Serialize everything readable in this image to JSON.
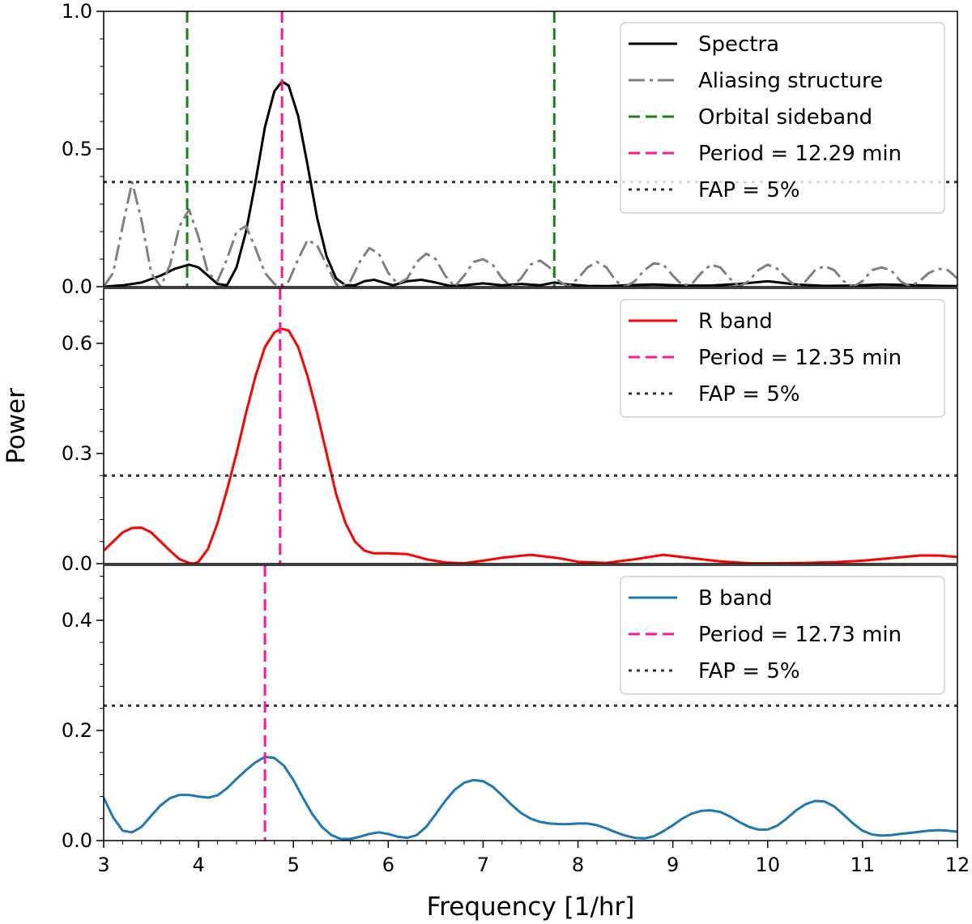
{
  "chart_data": {
    "type": "line",
    "xlabel": "Frequency [1/hr]",
    "ylabel": "Power",
    "xlim": [
      3,
      12
    ],
    "x_ticks": [
      "3",
      "4",
      "5",
      "6",
      "7",
      "8",
      "9",
      "10",
      "11",
      "12"
    ],
    "colors": {
      "spectra": "#000000",
      "alias": "#808080",
      "orbital": "#1a7f1a",
      "period": "#ff1493",
      "fap": "#333333",
      "r_band": "#ff0000",
      "b_band": "#1f77b4"
    },
    "panels": [
      {
        "id": "spectra",
        "ylim": [
          0,
          1.0
        ],
        "y_ticks": [
          "0.0",
          "0.5",
          "1.0"
        ],
        "fap": 0.38,
        "period_freq": 4.88,
        "orbital_sidebands": [
          3.88,
          7.75
        ],
        "legend": [
          {
            "label": "Spectra",
            "style": "solid",
            "color": "#000000"
          },
          {
            "label": "Aliasing structure",
            "style": "dashdot",
            "color": "#808080"
          },
          {
            "label": "Orbital sideband",
            "style": "dashed",
            "color": "#1a7f1a"
          },
          {
            "label": "Period = 12.29 min",
            "style": "dashed",
            "color": "#ff1493"
          },
          {
            "label": "FAP = 5%",
            "style": "dotted",
            "color": "#333333"
          }
        ],
        "series": [
          {
            "name": "Spectra",
            "color": "#000000",
            "dash": "",
            "x": [
              3.0,
              3.2,
              3.4,
              3.6,
              3.75,
              3.9,
              4.0,
              4.1,
              4.2,
              4.3,
              4.4,
              4.5,
              4.6,
              4.7,
              4.8,
              4.88,
              4.95,
              5.05,
              5.15,
              5.25,
              5.35,
              5.45,
              5.55,
              5.65,
              5.75,
              5.85,
              5.95,
              6.05,
              6.2,
              6.35,
              6.5,
              6.65,
              6.8,
              7.0,
              7.2,
              7.4,
              7.6,
              7.75,
              7.9,
              8.1,
              8.3,
              8.5,
              8.8,
              9.1,
              9.4,
              9.7,
              10.0,
              10.3,
              10.6,
              10.9,
              11.2,
              11.5,
              11.8,
              12.0
            ],
            "y": [
              0.0,
              0.005,
              0.015,
              0.04,
              0.065,
              0.08,
              0.07,
              0.04,
              0.01,
              0.005,
              0.07,
              0.2,
              0.38,
              0.58,
              0.71,
              0.745,
              0.73,
              0.62,
              0.44,
              0.25,
              0.11,
              0.03,
              0.005,
              0.005,
              0.02,
              0.025,
              0.015,
              0.005,
              0.02,
              0.025,
              0.015,
              0.003,
              0.005,
              0.012,
              0.005,
              0.01,
              0.005,
              0.015,
              0.008,
              0.003,
              0.002,
              0.005,
              0.008,
              0.004,
              0.004,
              0.01,
              0.02,
              0.008,
              0.003,
              0.004,
              0.008,
              0.006,
              0.003,
              0.002
            ]
          },
          {
            "name": "Aliasing structure",
            "color": "#808080",
            "dash": "20,6,4,6",
            "x": [
              3.0,
              3.1,
              3.2,
              3.3,
              3.4,
              3.5,
              3.6,
              3.7,
              3.8,
              3.9,
              4.0,
              4.1,
              4.2,
              4.3,
              4.4,
              4.5,
              4.6,
              4.7,
              4.8,
              4.88,
              4.95,
              5.05,
              5.15,
              5.25,
              5.35,
              5.45,
              5.5,
              5.6,
              5.7,
              5.8,
              5.9,
              6.0,
              6.1,
              6.2,
              6.3,
              6.4,
              6.5,
              6.6,
              6.7,
              6.8,
              6.9,
              7.0,
              7.1,
              7.2,
              7.3,
              7.4,
              7.5,
              7.6,
              7.7,
              7.8,
              7.9,
              8.0,
              8.1,
              8.2,
              8.3,
              8.4,
              8.5,
              8.6,
              8.7,
              8.8,
              8.9,
              9.0,
              9.1,
              9.2,
              9.3,
              9.4,
              9.5,
              9.6,
              9.7,
              9.8,
              9.9,
              10.0,
              10.1,
              10.2,
              10.3,
              10.4,
              10.5,
              10.6,
              10.7,
              10.8,
              10.9,
              11.0,
              11.1,
              11.2,
              11.3,
              11.4,
              11.5,
              11.6,
              11.7,
              11.8,
              11.9,
              12.0
            ],
            "y": [
              0.0,
              0.05,
              0.22,
              0.38,
              0.24,
              0.05,
              0.0,
              0.08,
              0.22,
              0.28,
              0.18,
              0.05,
              0.02,
              0.1,
              0.2,
              0.22,
              0.14,
              0.05,
              0.01,
              0.0,
              0.02,
              0.1,
              0.17,
              0.15,
              0.08,
              0.01,
              0.0,
              0.02,
              0.09,
              0.14,
              0.12,
              0.05,
              0.01,
              0.03,
              0.09,
              0.12,
              0.1,
              0.04,
              0.0,
              0.04,
              0.09,
              0.1,
              0.08,
              0.03,
              0.0,
              0.03,
              0.08,
              0.095,
              0.07,
              0.02,
              0.0,
              0.03,
              0.07,
              0.09,
              0.07,
              0.02,
              0.0,
              0.02,
              0.06,
              0.085,
              0.08,
              0.04,
              0.005,
              0.01,
              0.05,
              0.08,
              0.07,
              0.03,
              0.0,
              0.02,
              0.06,
              0.08,
              0.065,
              0.03,
              0.0,
              0.02,
              0.06,
              0.075,
              0.06,
              0.02,
              0.0,
              0.02,
              0.06,
              0.07,
              0.06,
              0.02,
              0.0,
              0.02,
              0.05,
              0.065,
              0.06,
              0.03
            ]
          }
        ]
      },
      {
        "id": "r_band",
        "ylim": [
          0,
          0.75
        ],
        "y_ticks": [
          "0.0",
          "0.3",
          "0.6"
        ],
        "fap": 0.24,
        "period_freq": 4.86,
        "legend": [
          {
            "label": "R band",
            "style": "solid",
            "color": "#ff0000"
          },
          {
            "label": "Period = 12.35 min",
            "style": "dashed",
            "color": "#ff1493"
          },
          {
            "label": "FAP = 5%",
            "style": "dotted",
            "color": "#333333"
          }
        ],
        "series": [
          {
            "name": "R band",
            "color": "#ff0000",
            "dash": "",
            "x": [
              3.0,
              3.1,
              3.2,
              3.3,
              3.4,
              3.5,
              3.6,
              3.7,
              3.8,
              3.9,
              3.95,
              4.0,
              4.1,
              4.2,
              4.3,
              4.4,
              4.5,
              4.6,
              4.7,
              4.8,
              4.87,
              4.95,
              5.05,
              5.15,
              5.25,
              5.35,
              5.45,
              5.55,
              5.65,
              5.75,
              5.85,
              6.0,
              6.2,
              6.4,
              6.6,
              6.8,
              7.0,
              7.2,
              7.5,
              7.8,
              8.0,
              8.3,
              8.6,
              8.9,
              9.2,
              9.5,
              9.8,
              10.1,
              10.4,
              10.7,
              11.0,
              11.3,
              11.6,
              11.8,
              12.0
            ],
            "y": [
              0.035,
              0.06,
              0.085,
              0.097,
              0.098,
              0.085,
              0.06,
              0.035,
              0.012,
              0.002,
              0.0,
              0.005,
              0.04,
              0.11,
              0.2,
              0.3,
              0.41,
              0.51,
              0.59,
              0.63,
              0.64,
              0.635,
              0.59,
              0.51,
              0.41,
              0.3,
              0.19,
              0.11,
              0.06,
              0.035,
              0.028,
              0.028,
              0.026,
              0.012,
              0.003,
              0.001,
              0.008,
              0.016,
              0.024,
              0.015,
              0.005,
              0.002,
              0.012,
              0.024,
              0.015,
              0.006,
              0.001,
              0.001,
              0.002,
              0.004,
              0.008,
              0.015,
              0.022,
              0.022,
              0.018
            ]
          }
        ]
      },
      {
        "id": "b_band",
        "ylim": [
          0,
          0.5
        ],
        "y_ticks": [
          "0.0",
          "0.2",
          "0.4"
        ],
        "fap": 0.245,
        "period_freq": 4.7,
        "legend": [
          {
            "label": "B band",
            "style": "solid",
            "color": "#1f77b4"
          },
          {
            "label": "Period = 12.73 min",
            "style": "dashed",
            "color": "#ff1493"
          },
          {
            "label": "FAP = 5%",
            "style": "dotted",
            "color": "#333333"
          }
        ],
        "series": [
          {
            "name": "B band",
            "color": "#1f77b4",
            "dash": "",
            "x": [
              3.0,
              3.1,
              3.2,
              3.3,
              3.4,
              3.5,
              3.6,
              3.7,
              3.8,
              3.9,
              4.0,
              4.1,
              4.2,
              4.3,
              4.4,
              4.5,
              4.6,
              4.7,
              4.8,
              4.9,
              5.0,
              5.1,
              5.2,
              5.3,
              5.4,
              5.5,
              5.6,
              5.7,
              5.8,
              5.9,
              6.0,
              6.1,
              6.2,
              6.3,
              6.4,
              6.5,
              6.6,
              6.7,
              6.8,
              6.9,
              7.0,
              7.1,
              7.2,
              7.3,
              7.4,
              7.5,
              7.6,
              7.7,
              7.8,
              7.9,
              8.0,
              8.1,
              8.2,
              8.3,
              8.4,
              8.5,
              8.6,
              8.7,
              8.8,
              8.9,
              9.0,
              9.1,
              9.2,
              9.3,
              9.4,
              9.5,
              9.6,
              9.7,
              9.8,
              9.9,
              10.0,
              10.1,
              10.2,
              10.3,
              10.4,
              10.5,
              10.6,
              10.7,
              10.8,
              10.9,
              11.0,
              11.1,
              11.2,
              11.3,
              11.4,
              11.5,
              11.6,
              11.7,
              11.8,
              11.9,
              12.0
            ],
            "y": [
              0.078,
              0.042,
              0.018,
              0.015,
              0.025,
              0.045,
              0.064,
              0.077,
              0.083,
              0.083,
              0.08,
              0.078,
              0.082,
              0.095,
              0.112,
              0.128,
              0.142,
              0.152,
              0.15,
              0.136,
              0.11,
              0.078,
              0.048,
              0.025,
              0.01,
              0.003,
              0.003,
              0.007,
              0.012,
              0.015,
              0.012,
              0.007,
              0.005,
              0.01,
              0.025,
              0.048,
              0.072,
              0.092,
              0.105,
              0.11,
              0.108,
              0.098,
              0.082,
              0.065,
              0.05,
              0.04,
              0.034,
              0.031,
              0.03,
              0.03,
              0.031,
              0.031,
              0.028,
              0.022,
              0.015,
              0.009,
              0.005,
              0.004,
              0.008,
              0.017,
              0.028,
              0.04,
              0.049,
              0.054,
              0.055,
              0.052,
              0.044,
              0.034,
              0.025,
              0.02,
              0.02,
              0.027,
              0.04,
              0.055,
              0.066,
              0.072,
              0.071,
              0.062,
              0.047,
              0.031,
              0.018,
              0.011,
              0.009,
              0.01,
              0.012,
              0.014,
              0.016,
              0.018,
              0.019,
              0.018,
              0.016
            ]
          }
        ]
      }
    ]
  }
}
